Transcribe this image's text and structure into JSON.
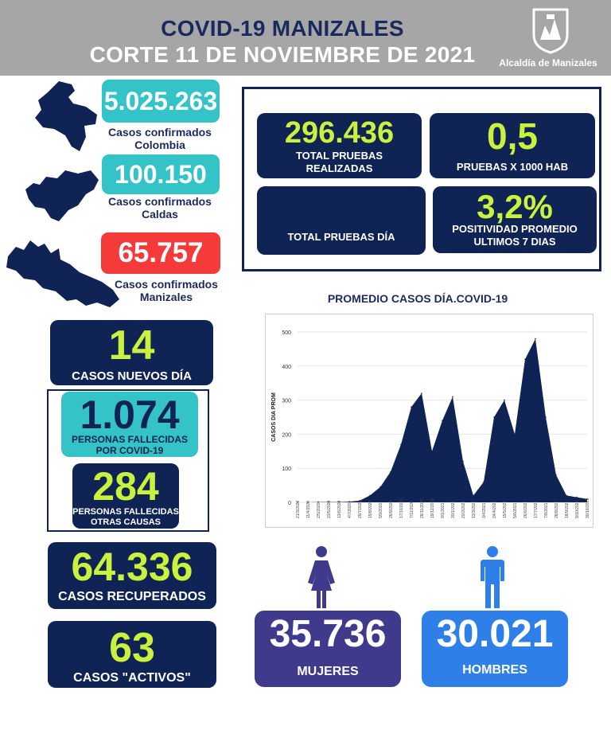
{
  "header": {
    "title_line1": "COVID-19 MANIZALES",
    "title_line2": "CORTE 11 DE NOVIEMBRE DE 2021",
    "logo_label": "Alcaldía de Manizales"
  },
  "colombia": {
    "value": "5.025.263",
    "label_line1": "Casos confirmados",
    "label_line2": "Colombia"
  },
  "caldas": {
    "value": "100.150",
    "label_line1": "Casos confirmados",
    "label_line2": "Caldas"
  },
  "manizales": {
    "value": "65.757",
    "label_line1": "Casos confirmados",
    "label_line2": "Manizales"
  },
  "new_cases": {
    "value": "14",
    "label": "CASOS NUEVOS DÍA"
  },
  "deaths_covid": {
    "value": "1.074",
    "label_line1": "PERSONAS FALLECIDAS",
    "label_line2": "POR COVID-19"
  },
  "deaths_other": {
    "value": "284",
    "label_line1": "PERSONAS FALLECIDAS",
    "label_line2": "OTRAS CAUSAS"
  },
  "recovered": {
    "value": "64.336",
    "label": "CASOS RECUPERADOS"
  },
  "active": {
    "value": "63",
    "label": "CASOS \"ACTIVOS\""
  },
  "tests": {
    "total": {
      "value": "296.436",
      "label_line1": "TOTAL PRUEBAS",
      "label_line2": "REALIZADAS"
    },
    "per_1000": {
      "value": "0,5",
      "label": "PRUEBAS X 1000 HAB"
    },
    "per_day": {
      "value": "",
      "label": "TOTAL PRUEBAS DÍA"
    },
    "positivity": {
      "value": "3,2%",
      "label_line1": "POSITIVIDAD PROMEDIO",
      "label_line2": "ULTIMOS 7 DIAS"
    }
  },
  "women": {
    "value": "35.736",
    "label": "MUJERES"
  },
  "men": {
    "value": "30.021",
    "label": "HOMBRES"
  },
  "colors": {
    "navy": "#0f2454",
    "lime": "#c9f23e",
    "teal": "#34c3c7",
    "red": "#f53a3a",
    "purple": "#3f3a8c",
    "blue": "#2f7fe8",
    "header_gray": "#a6a6a6"
  },
  "icons": {
    "map_colombia": "colombia-map-icon",
    "map_caldas": "caldas-map-icon",
    "map_manizales": "manizales-map-icon",
    "woman": "woman-icon",
    "man": "man-icon",
    "logo": "coat-of-arms-icon"
  },
  "chart_data": {
    "type": "area",
    "title": "PROMEDIO CASOS DÍA.COVID-19",
    "ylabel": "CASOS DIA PROM",
    "xlabel": "",
    "ylim": [
      0,
      500
    ],
    "yticks": [
      0,
      100,
      200,
      300,
      400,
      500
    ],
    "grid": true,
    "x": [
      "21/3/2020",
      "11/4/2020",
      "2/5/2020",
      "23/5/2020",
      "13/6/2020",
      "4/7/2020",
      "25/7/2020",
      "15/8/2020",
      "5/9/2020",
      "26/9/2020",
      "17/10/2020",
      "7/11/2020",
      "28/11/2020",
      "19/12/2020",
      "9/1/2021",
      "30/1/2021",
      "20/2/2021",
      "13/3/2021",
      "3/4/2021",
      "24/4/2021",
      "15/5/2021",
      "5/6/2021",
      "26/6/2021",
      "17/7/2021",
      "7/8/2021",
      "28/8/2021",
      "18/9/2021",
      "9/10/2021",
      "30/10/2021"
    ],
    "values": [
      0,
      0,
      1,
      1,
      1,
      2,
      5,
      20,
      45,
      90,
      170,
      280,
      320,
      150,
      240,
      310,
      120,
      20,
      60,
      250,
      300,
      200,
      420,
      480,
      250,
      80,
      20,
      15,
      10
    ]
  }
}
